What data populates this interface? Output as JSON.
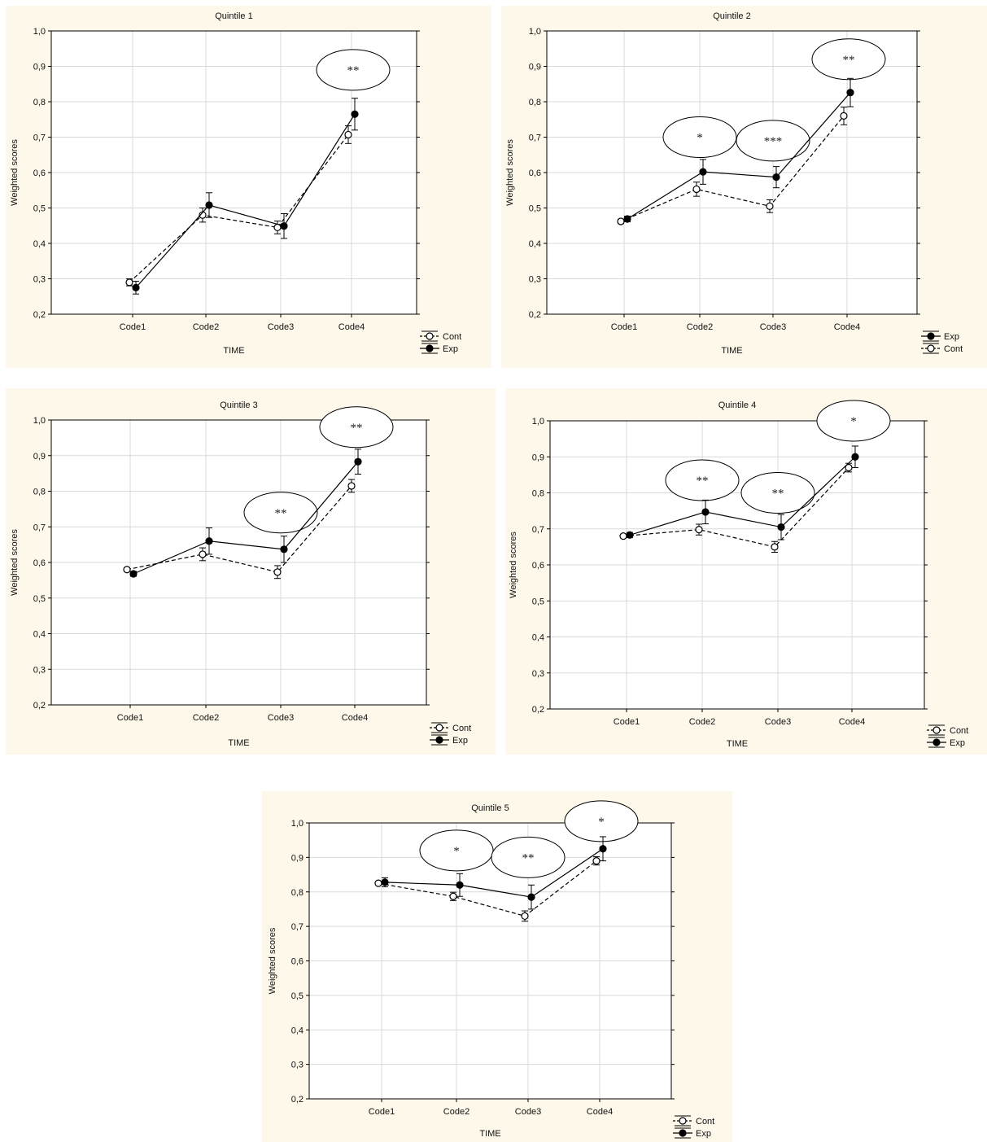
{
  "chart_data": [
    {
      "type": "line",
      "title": "Quintile 1",
      "xlabel": "TIME",
      "ylabel": "Weighted scores",
      "categories": [
        "Code1",
        "Code2",
        "Code3",
        "Code4"
      ],
      "ylim": [
        0.2,
        1.0
      ],
      "yticks": [
        "0,2",
        "0,3",
        "0,4",
        "0,5",
        "0,6",
        "0,7",
        "0,8",
        "0,9",
        "1,0"
      ],
      "grid": true,
      "legend_order": [
        "Cont",
        "Exp"
      ],
      "series": [
        {
          "name": "Cont",
          "values": [
            0.29,
            0.48,
            0.445,
            0.707
          ],
          "err": [
            0.01,
            0.02,
            0.018,
            0.025
          ],
          "style": "dashed-open"
        },
        {
          "name": "Exp",
          "values": [
            0.275,
            0.508,
            0.449,
            0.765
          ],
          "err": [
            0.018,
            0.035,
            0.035,
            0.045
          ],
          "style": "solid-filled"
        }
      ],
      "annotations": [
        {
          "category": "Code4",
          "label": "**",
          "y": 0.89
        }
      ]
    },
    {
      "type": "line",
      "title": "Quintile 2",
      "xlabel": "TIME",
      "ylabel": "Weighted scores",
      "categories": [
        "Code1",
        "Code2",
        "Code3",
        "Code4"
      ],
      "ylim": [
        0.2,
        1.0
      ],
      "yticks": [
        "0,2",
        "0,3",
        "0,4",
        "0,5",
        "0,6",
        "0,7",
        "0,8",
        "0,9",
        "1,0"
      ],
      "grid": true,
      "legend_order": [
        "Exp",
        "Cont"
      ],
      "series": [
        {
          "name": "Cont",
          "values": [
            0.462,
            0.553,
            0.505,
            0.76
          ],
          "err": [
            0.006,
            0.02,
            0.018,
            0.025
          ],
          "style": "dashed-open"
        },
        {
          "name": "Exp",
          "values": [
            0.469,
            0.602,
            0.587,
            0.826
          ],
          "err": [
            0.008,
            0.035,
            0.03,
            0.04
          ],
          "style": "solid-filled"
        }
      ],
      "annotations": [
        {
          "category": "Code2",
          "label": "*",
          "y": 0.7
        },
        {
          "category": "Code3",
          "label": "***",
          "y": 0.69
        },
        {
          "category": "Code4",
          "label": "**",
          "y": 0.92
        }
      ]
    },
    {
      "type": "line",
      "title": "Quintile 3",
      "xlabel": "TIME",
      "ylabel": "Weighted scores",
      "categories": [
        "Code1",
        "Code2",
        "Code3",
        "Code4"
      ],
      "ylim": [
        0.2,
        1.0
      ],
      "yticks": [
        "0,2",
        "0,3",
        "0,4",
        "0,5",
        "0,6",
        "0,7",
        "0,8",
        "0,9",
        "1,0"
      ],
      "grid": true,
      "legend_order": [
        "Cont",
        "Exp"
      ],
      "series": [
        {
          "name": "Cont",
          "values": [
            0.58,
            0.623,
            0.573,
            0.815
          ],
          "err": [
            0.005,
            0.018,
            0.018,
            0.018
          ],
          "style": "dashed-open"
        },
        {
          "name": "Exp",
          "values": [
            0.568,
            0.66,
            0.637,
            0.883
          ],
          "err": [
            0.007,
            0.037,
            0.037,
            0.035
          ],
          "style": "solid-filled"
        }
      ],
      "annotations": [
        {
          "category": "Code3",
          "label": "**",
          "y": 0.74
        },
        {
          "category": "Code4",
          "label": "**",
          "y": 0.98
        }
      ]
    },
    {
      "type": "line",
      "title": "Quintile 4",
      "xlabel": "TIME",
      "ylabel": "Weighted scores",
      "categories": [
        "Code1",
        "Code2",
        "Code3",
        "Code4"
      ],
      "ylim": [
        0.2,
        1.0
      ],
      "yticks": [
        "0,2",
        "0,3",
        "0,4",
        "0,5",
        "0,6",
        "0,7",
        "0,8",
        "0,9",
        "1,0"
      ],
      "grid": true,
      "legend_order": [
        "Cont",
        "Exp"
      ],
      "series": [
        {
          "name": "Cont",
          "values": [
            0.68,
            0.698,
            0.65,
            0.87
          ],
          "err": [
            0.004,
            0.015,
            0.015,
            0.012
          ],
          "style": "dashed-open"
        },
        {
          "name": "Exp",
          "values": [
            0.683,
            0.747,
            0.705,
            0.9
          ],
          "err": [
            0.007,
            0.033,
            0.035,
            0.03
          ],
          "style": "solid-filled"
        }
      ],
      "annotations": [
        {
          "category": "Code2",
          "label": "**",
          "y": 0.835
        },
        {
          "category": "Code3",
          "label": "**",
          "y": 0.8
        },
        {
          "category": "Code4",
          "label": "*",
          "y": 1.0
        }
      ]
    },
    {
      "type": "line",
      "title": "Quintile 5",
      "xlabel": "TIME",
      "ylabel": "Weighted scores",
      "categories": [
        "Code1",
        "Code2",
        "Code3",
        "Code4"
      ],
      "ylim": [
        0.2,
        1.0
      ],
      "yticks": [
        "0,2",
        "0,3",
        "0,4",
        "0,5",
        "0,6",
        "0,7",
        "0,8",
        "0,9",
        "1,0"
      ],
      "grid": true,
      "legend_order": [
        "Cont",
        "Exp"
      ],
      "series": [
        {
          "name": "Cont",
          "values": [
            0.825,
            0.787,
            0.73,
            0.89
          ],
          "err": [
            0.004,
            0.012,
            0.015,
            0.012
          ],
          "style": "dashed-open"
        },
        {
          "name": "Exp",
          "values": [
            0.828,
            0.82,
            0.785,
            0.925
          ],
          "err": [
            0.013,
            0.033,
            0.035,
            0.035
          ],
          "style": "solid-filled"
        }
      ],
      "annotations": [
        {
          "category": "Code2",
          "label": "*",
          "y": 0.92
        },
        {
          "category": "Code3",
          "label": "**",
          "y": 0.9
        },
        {
          "category": "Code4",
          "label": "*",
          "y": 1.005
        }
      ]
    }
  ]
}
